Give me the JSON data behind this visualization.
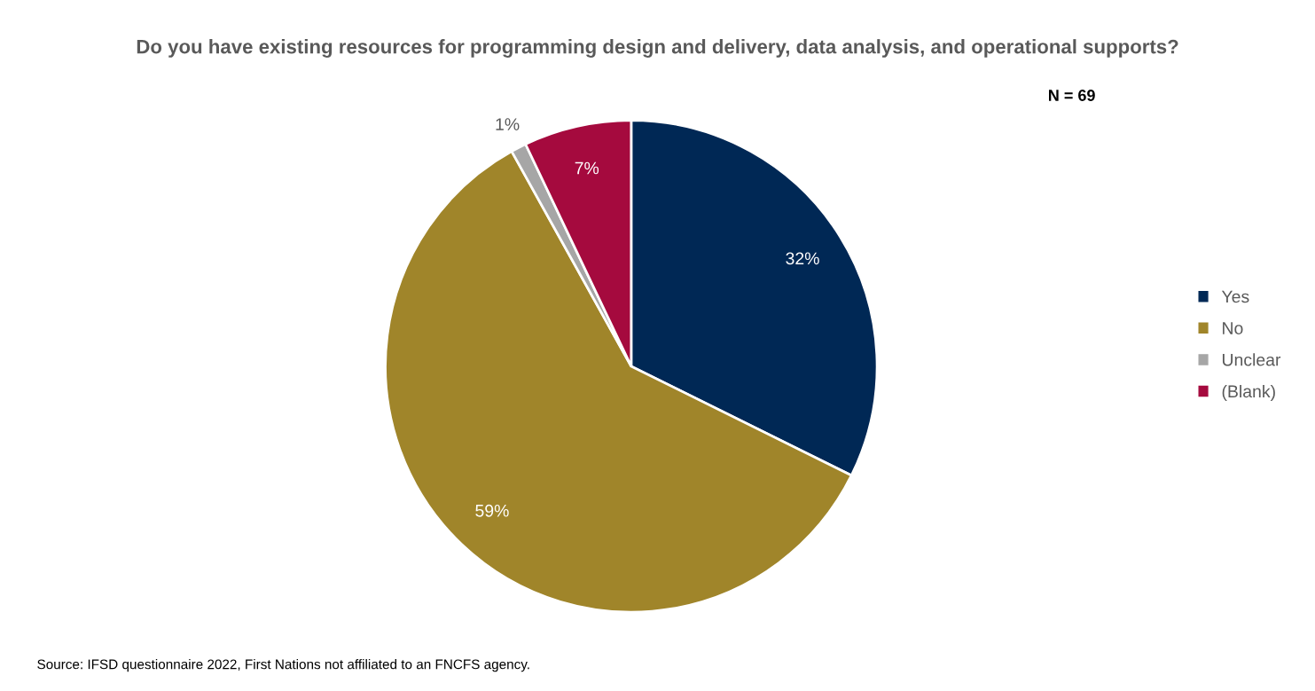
{
  "chart_data": {
    "type": "pie",
    "title": "Do you have existing resources for programming design and delivery, data analysis, and operational supports?",
    "categories": [
      "Yes",
      "No",
      "Unclear",
      "(Blank)"
    ],
    "values": [
      32,
      59,
      1,
      7
    ],
    "colors": [
      "#002855",
      "#a0852a",
      "#a6a6a6",
      "#a50a3e"
    ],
    "value_labels": [
      "32%",
      "59%",
      "1%",
      "7%"
    ],
    "legend": "right",
    "annotations": [
      "N = 69",
      "Source: IFSD questionnaire 2022, First Nations not affiliated to an FNCFS agency."
    ]
  }
}
